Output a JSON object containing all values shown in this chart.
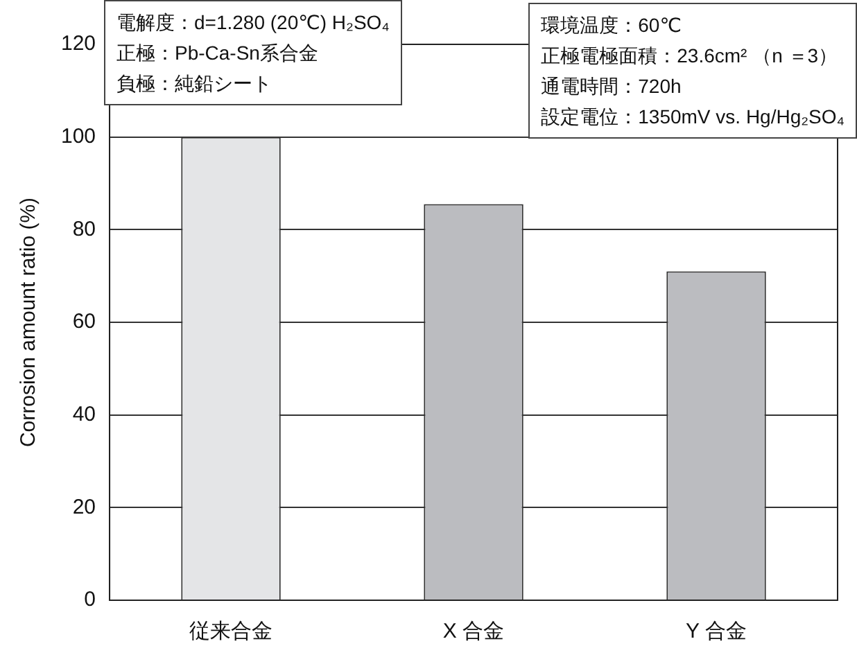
{
  "chart_data": {
    "type": "bar",
    "ylabel": "Corrosion amount ratio (%)",
    "categories": [
      "従来合金",
      "X 合金",
      "Y 合金"
    ],
    "values": [
      100,
      85.5,
      71
    ],
    "colors": [
      "#e4e5e7",
      "#bbbcc0",
      "#bbbcc0"
    ],
    "ylim": [
      0,
      120
    ],
    "yticks": [
      0,
      20,
      40,
      60,
      80,
      100,
      120
    ],
    "grid": "y",
    "legend": false,
    "annotations": [
      "電解度：d=1.280 (20℃) H₂SO₄",
      "正極：Pb-Ca-Sn系合金",
      "負極：純鉛シート",
      "環境温度：60℃",
      "正極電極面積：23.6cm² （n ＝3）",
      "通電時間：720h",
      "設定電位：1350mV vs. Hg/Hg₂SO₄"
    ]
  }
}
